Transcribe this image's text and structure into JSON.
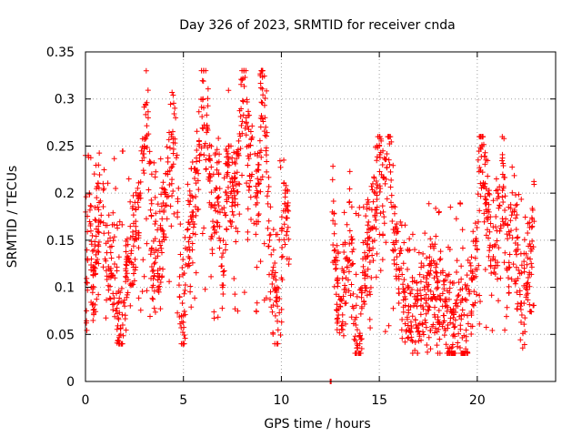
{
  "chart_data": {
    "type": "scatter",
    "title": "Day 326 of 2023, SRMTID for receiver cnda",
    "xlabel": "GPS time / hours",
    "ylabel": "SRMTID / TECUs",
    "xlim": [
      0,
      24
    ],
    "ylim": [
      0,
      0.35
    ],
    "xticks": [
      0,
      5,
      10,
      15,
      20
    ],
    "xtick_labels": [
      "0",
      "5",
      "10",
      "15",
      "20"
    ],
    "yticks": [
      0,
      0.05,
      0.1,
      0.15,
      0.2,
      0.25,
      0.3,
      0.35
    ],
    "ytick_labels": [
      "0",
      "0.05",
      "0.1",
      "0.15",
      "0.2",
      "0.25",
      "0.3",
      "0.35"
    ],
    "grid": true,
    "marker": "+",
    "color": "#ff0000",
    "series": [
      {
        "name": "SRMTID",
        "segments": [
          {
            "x_start": 0.0,
            "x_end": 10.4,
            "y_min": 0.04,
            "y_max": 0.33,
            "typical_low": 0.06,
            "typical_high": 0.25
          },
          {
            "x_start": 12.5,
            "x_end": 12.55,
            "y_min": 0.0,
            "y_max": 0.0,
            "typical_low": 0.0,
            "typical_high": 0.0
          },
          {
            "x_start": 12.6,
            "x_end": 22.9,
            "y_min": 0.03,
            "y_max": 0.26,
            "typical_low": 0.05,
            "typical_high": 0.2
          }
        ],
        "samples": [
          [
            0.0,
            0.24
          ],
          [
            0.05,
            0.075
          ],
          [
            0.1,
            0.13
          ],
          [
            0.2,
            0.2
          ],
          [
            0.3,
            0.13
          ],
          [
            0.5,
            0.12
          ],
          [
            0.7,
            0.19
          ],
          [
            0.9,
            0.21
          ],
          [
            1.0,
            0.13
          ],
          [
            1.3,
            0.12
          ],
          [
            1.5,
            0.11
          ],
          [
            1.8,
            0.05
          ],
          [
            1.9,
            0.06
          ],
          [
            2.0,
            0.08
          ],
          [
            2.2,
            0.13
          ],
          [
            2.5,
            0.15
          ],
          [
            2.8,
            0.2
          ],
          [
            3.0,
            0.25
          ],
          [
            3.2,
            0.28
          ],
          [
            3.4,
            0.1
          ],
          [
            3.6,
            0.14
          ],
          [
            3.8,
            0.12
          ],
          [
            4.0,
            0.18
          ],
          [
            4.2,
            0.22
          ],
          [
            4.4,
            0.26
          ],
          [
            4.6,
            0.28
          ],
          [
            4.8,
            0.09
          ],
          [
            5.0,
            0.07
          ],
          [
            5.2,
            0.14
          ],
          [
            5.5,
            0.18
          ],
          [
            5.8,
            0.25
          ],
          [
            6.0,
            0.3
          ],
          [
            6.2,
            0.27
          ],
          [
            6.5,
            0.17
          ],
          [
            6.8,
            0.22
          ],
          [
            7.0,
            0.1
          ],
          [
            7.3,
            0.25
          ],
          [
            7.5,
            0.19
          ],
          [
            7.8,
            0.21
          ],
          [
            8.0,
            0.32
          ],
          [
            8.2,
            0.28
          ],
          [
            8.5,
            0.22
          ],
          [
            8.8,
            0.2
          ],
          [
            9.0,
            0.33
          ],
          [
            9.2,
            0.27
          ],
          [
            9.4,
            0.15
          ],
          [
            9.6,
            0.11
          ],
          [
            9.8,
            0.08
          ],
          [
            10.0,
            0.11
          ],
          [
            10.2,
            0.2
          ],
          [
            10.4,
            0.13
          ],
          [
            12.5,
            0.0
          ],
          [
            12.6,
            0.18
          ],
          [
            12.8,
            0.12
          ],
          [
            13.0,
            0.08
          ],
          [
            13.3,
            0.11
          ],
          [
            13.5,
            0.16
          ],
          [
            13.8,
            0.06
          ],
          [
            14.0,
            0.04
          ],
          [
            14.3,
            0.13
          ],
          [
            14.5,
            0.14
          ],
          [
            14.8,
            0.2
          ],
          [
            15.0,
            0.25
          ],
          [
            15.2,
            0.18
          ],
          [
            15.5,
            0.26
          ],
          [
            15.8,
            0.14
          ],
          [
            16.0,
            0.12
          ],
          [
            16.3,
            0.09
          ],
          [
            16.5,
            0.08
          ],
          [
            16.8,
            0.09
          ],
          [
            17.0,
            0.06
          ],
          [
            17.3,
            0.1
          ],
          [
            17.5,
            0.08
          ],
          [
            17.8,
            0.11
          ],
          [
            18.0,
            0.09
          ],
          [
            18.3,
            0.07
          ],
          [
            18.5,
            0.06
          ],
          [
            18.8,
            0.05
          ],
          [
            19.0,
            0.08
          ],
          [
            19.3,
            0.03
          ],
          [
            19.5,
            0.07
          ],
          [
            19.8,
            0.11
          ],
          [
            20.0,
            0.14
          ],
          [
            20.2,
            0.26
          ],
          [
            20.4,
            0.21
          ],
          [
            20.6,
            0.18
          ],
          [
            20.8,
            0.13
          ],
          [
            21.0,
            0.16
          ],
          [
            21.3,
            0.22
          ],
          [
            21.5,
            0.12
          ],
          [
            21.8,
            0.18
          ],
          [
            22.0,
            0.14
          ],
          [
            22.2,
            0.08
          ],
          [
            22.5,
            0.1
          ],
          [
            22.7,
            0.13
          ],
          [
            22.9,
            0.17
          ]
        ]
      }
    ]
  }
}
